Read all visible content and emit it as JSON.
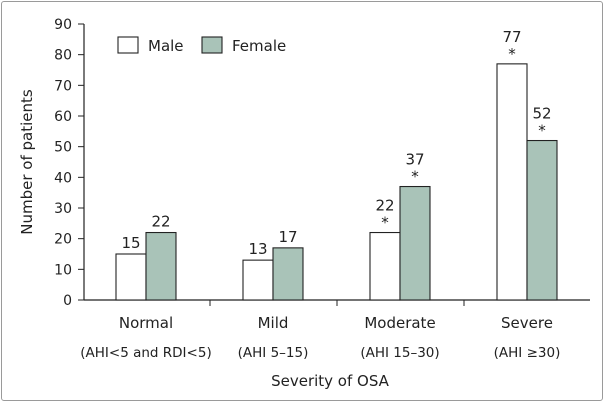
{
  "chart_data": {
    "type": "bar",
    "title": "",
    "xlabel": "Severity of OSA",
    "ylabel": "Number of patients",
    "ylim": [
      0,
      90
    ],
    "yticks": [
      "0",
      "10",
      "20",
      "30",
      "40",
      "50",
      "60",
      "70",
      "80",
      "90"
    ],
    "categories": [
      "Normal",
      "Mild",
      "Moderate",
      "Severe"
    ],
    "category_sublabels": [
      "(AHI<5 and RDI<5)",
      "(AHI 5–15)",
      "(AHI 15–30)",
      "(AHI ≥30)"
    ],
    "series": [
      {
        "name": "Male",
        "color": "#ffffff",
        "values": [
          15,
          13,
          22,
          77
        ],
        "asterisk": [
          false,
          false,
          true,
          true
        ]
      },
      {
        "name": "Female",
        "color": "#a9c3b8",
        "values": [
          22,
          17,
          37,
          52
        ],
        "asterisk": [
          false,
          false,
          true,
          true
        ]
      }
    ],
    "grid": false,
    "legend": "top-left"
  }
}
